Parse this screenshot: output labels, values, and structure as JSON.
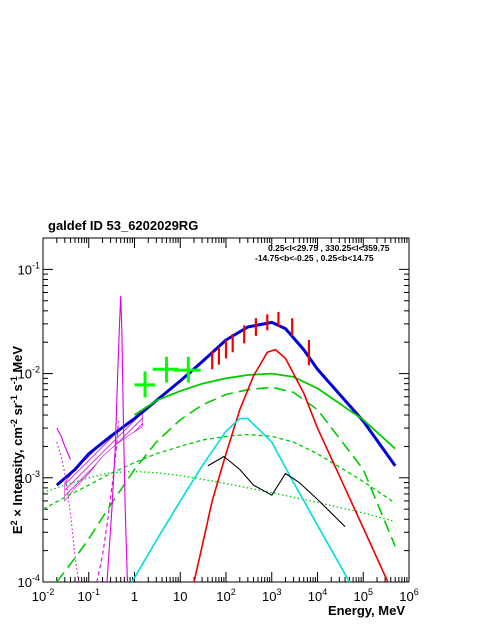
{
  "chart_data": {
    "type": "line",
    "title": "galdef ID 53_6202029RG",
    "annotations": [
      "0.25<l<29.75 , 330.25<l<359.75",
      "-14.75<b<-0.25 ,  0.25<b<14.75"
    ],
    "xlabel": "Energy, MeV",
    "ylabel": {
      "prefix": "E",
      "prefix_sup": "2",
      "mid": " × Intensity, cm",
      "unit1_sup": "-2",
      "unit2": " sr",
      "unit2_sup": "-1",
      "unit3": " s",
      "unit3_sup": "-1",
      "suffix": " MeV"
    },
    "x_scale": "log",
    "y_scale": "log",
    "xlim": [
      0.01,
      1000000
    ],
    "ylim": [
      0.0001,
      0.2
    ],
    "x_ticks": [
      {
        "base": "10",
        "exp": "-2",
        "value": 0.01
      },
      {
        "base": "10",
        "exp": "-1",
        "value": 0.1
      },
      {
        "base": "1",
        "exp": "",
        "value": 1
      },
      {
        "base": "10",
        "exp": "",
        "value": 10
      },
      {
        "base": "10",
        "exp": "2",
        "value": 100
      },
      {
        "base": "10",
        "exp": "3",
        "value": 1000
      },
      {
        "base": "10",
        "exp": "4",
        "value": 10000
      },
      {
        "base": "10",
        "exp": "5",
        "value": 100000
      },
      {
        "base": "10",
        "exp": "6",
        "value": 1000000
      }
    ],
    "y_ticks": [
      {
        "base": "10",
        "exp": "-4",
        "value": 0.0001
      },
      {
        "base": "10",
        "exp": "-3",
        "value": 0.001
      },
      {
        "base": "10",
        "exp": "-2",
        "value": 0.01
      },
      {
        "base": "10",
        "exp": "-1",
        "value": 0.1
      }
    ],
    "series": [
      {
        "color": "#0000dd",
        "style": "solid",
        "width": 3,
        "x": [
          0.02,
          0.05,
          0.1,
          0.3,
          1,
          3,
          10,
          30,
          100,
          300,
          1000,
          2000,
          5000,
          10000,
          100000,
          500000
        ],
        "y": [
          0.00085,
          0.0012,
          0.0017,
          0.0025,
          0.0037,
          0.0055,
          0.0085,
          0.013,
          0.021,
          0.028,
          0.031,
          0.027,
          0.017,
          0.011,
          0.0035,
          0.0013
        ]
      },
      {
        "color": "#00cc00",
        "style": "solid",
        "width": 1.8,
        "x": [
          1,
          3,
          10,
          30,
          100,
          300,
          1000,
          3000,
          10000,
          100000,
          500000
        ],
        "y": [
          0.004,
          0.0055,
          0.0068,
          0.008,
          0.009,
          0.0097,
          0.01,
          0.0093,
          0.0072,
          0.0036,
          0.0019
        ]
      },
      {
        "color": "#00cc00",
        "style": "longdash",
        "width": 1.6,
        "x": [
          0.02,
          0.05,
          0.1,
          0.3,
          1,
          3,
          10,
          30,
          100,
          300,
          1000,
          3000,
          10000,
          100000,
          500000
        ],
        "y": [
          0.0001,
          0.00017,
          0.00026,
          0.00055,
          0.0012,
          0.0022,
          0.0036,
          0.005,
          0.0063,
          0.007,
          0.0074,
          0.0066,
          0.0045,
          0.0012,
          0.00022
        ]
      },
      {
        "color": "#00cc00",
        "style": "dashed",
        "width": 1.3,
        "x": [
          0.01,
          0.03,
          0.1,
          0.3,
          1,
          3,
          10,
          30,
          100,
          300,
          1000,
          3000,
          10000,
          100000,
          500000
        ],
        "y": [
          0.0005,
          0.00065,
          0.00085,
          0.0011,
          0.0014,
          0.0017,
          0.002,
          0.0023,
          0.0025,
          0.0026,
          0.0025,
          0.0022,
          0.0017,
          0.00092,
          0.00057
        ]
      },
      {
        "color": "#00cc00",
        "style": "dotted",
        "width": 1.3,
        "x": [
          0.01,
          0.03,
          0.1,
          0.3,
          1,
          3,
          10,
          30,
          100,
          300,
          1000,
          3000,
          10000,
          100000,
          500000
        ],
        "y": [
          0.00072,
          0.00085,
          0.001,
          0.00112,
          0.00115,
          0.00112,
          0.00105,
          0.00097,
          0.00088,
          0.0008,
          0.00072,
          0.00065,
          0.00058,
          0.00046,
          0.00038
        ]
      },
      {
        "color": "#ee0000",
        "style": "solid",
        "width": 1.6,
        "x": [
          20,
          30,
          50,
          100,
          200,
          400,
          800,
          1200,
          2000,
          5000,
          10000,
          100000,
          500000
        ],
        "y": [
          0.0001,
          0.00022,
          0.0006,
          0.0017,
          0.0045,
          0.0095,
          0.016,
          0.017,
          0.014,
          0.0065,
          0.003,
          0.00033,
          7e-05
        ]
      },
      {
        "color": "#00dddd",
        "style": "solid",
        "width": 1.6,
        "x": [
          0.5,
          1,
          3,
          10,
          30,
          100,
          200,
          300,
          1000,
          3000,
          10000,
          50000
        ],
        "y": [
          7e-05,
          0.00011,
          0.00025,
          0.0006,
          0.0013,
          0.0028,
          0.0037,
          0.0037,
          0.0022,
          0.0009,
          0.00035,
          0.0001
        ]
      },
      {
        "color": "#000000",
        "style": "solid",
        "width": 1.1,
        "x": [
          40,
          90,
          200,
          400,
          1000,
          2000,
          4000,
          10000,
          40000
        ],
        "y": [
          0.0013,
          0.0016,
          0.0012,
          0.00085,
          0.00068,
          0.0011,
          0.0009,
          0.00062,
          0.00034
        ]
      },
      {
        "color": "#dd00dd",
        "style": "solid",
        "width": 1.1,
        "x": [
          0.25,
          0.32,
          0.38,
          0.43,
          0.47,
          0.5,
          0.53,
          0.57,
          0.62,
          0.7
        ],
        "y": [
          0.0001,
          0.0005,
          0.002,
          0.01,
          0.03,
          0.055,
          0.025,
          0.004,
          0.0006,
          0.0001
        ]
      },
      {
        "color": "#dd00dd",
        "style": "dotted",
        "width": 1.1,
        "x": [
          0.02,
          0.025,
          0.03,
          0.035,
          0.04,
          0.05,
          0.06
        ],
        "y": [
          0.0022,
          0.0016,
          0.0011,
          0.0007,
          0.00045,
          0.00018,
          0.0001
        ]
      },
      {
        "color": "#dd00dd",
        "style": "dashed",
        "width": 1.1,
        "x": [
          0.15,
          0.2,
          0.25,
          0.3,
          0.35,
          0.4,
          0.45
        ],
        "y": [
          0.0001,
          0.00018,
          0.00035,
          0.00065,
          0.0011,
          0.0019,
          0.0035
        ]
      },
      {
        "color": "#dd00dd",
        "style": "solid",
        "width": 1.1,
        "x": [
          0.02,
          0.025,
          0.03,
          0.04
        ],
        "y": [
          0.003,
          0.0025,
          0.002,
          0.0015
        ]
      }
    ],
    "hatched_band": {
      "color": "#cc00cc",
      "x": [
        0.03,
        0.05,
        0.1,
        0.2,
        0.4,
        0.8,
        1.5
      ],
      "y_low": [
        0.0006,
        0.0008,
        0.0011,
        0.0016,
        0.0021,
        0.0026,
        0.0031
      ],
      "y_high": [
        0.0009,
        0.0012,
        0.0016,
        0.0022,
        0.0028,
        0.0034,
        0.0042
      ]
    },
    "green_points": {
      "color": "#00ff00",
      "x": [
        1.7,
        5,
        15
      ],
      "xlo": [
        1,
        2.5,
        7
      ],
      "xhi": [
        2.8,
        9,
        28
      ],
      "y": [
        0.0078,
        0.011,
        0.0108
      ],
      "ylo": [
        0.0059,
        0.0082,
        0.0082
      ],
      "yhi": [
        0.0105,
        0.0145,
        0.0145
      ]
    },
    "red_points": {
      "color": "#ee0000",
      "x": [
        50,
        70,
        100,
        140,
        250,
        450,
        800,
        1400,
        2800,
        6500
      ],
      "y": [
        0.0135,
        0.015,
        0.0175,
        0.02,
        0.024,
        0.028,
        0.031,
        0.033,
        0.028,
        0.016
      ],
      "ylo": [
        0.011,
        0.0122,
        0.014,
        0.016,
        0.0195,
        0.023,
        0.026,
        0.028,
        0.023,
        0.012
      ],
      "yhi": [
        0.0165,
        0.018,
        0.021,
        0.024,
        0.029,
        0.034,
        0.037,
        0.039,
        0.034,
        0.021
      ]
    }
  }
}
